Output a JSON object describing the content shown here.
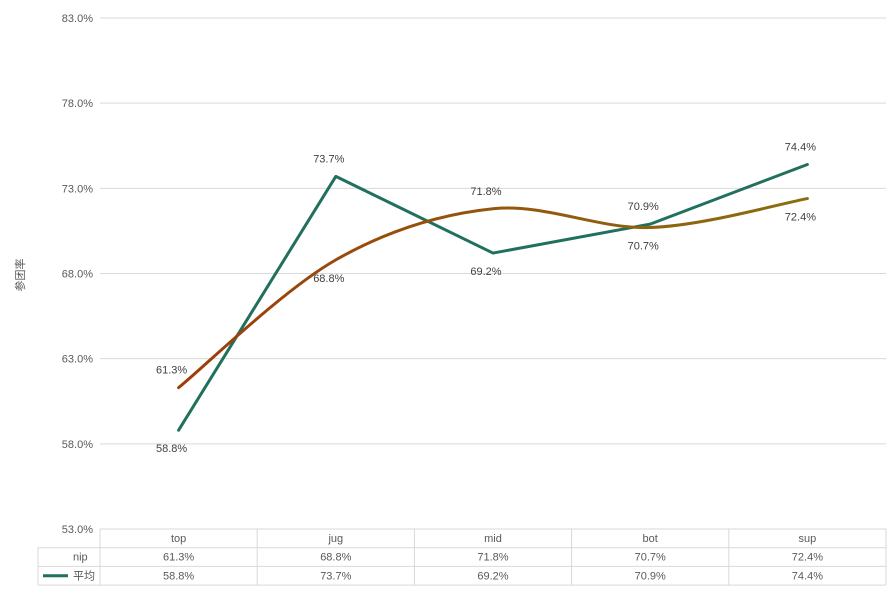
{
  "chart_data": {
    "type": "line",
    "title": "",
    "xlabel": "",
    "ylabel": "参团率",
    "categories": [
      "top",
      "jug",
      "mid",
      "bot",
      "sup"
    ],
    "ylim": [
      53.0,
      83.0
    ],
    "yticks": [
      "83.0%",
      "78.0%",
      "73.0%",
      "68.0%",
      "63.0%",
      "58.0%",
      "53.0%"
    ],
    "grid": true,
    "legend": "data-table",
    "series": [
      {
        "name": "nip",
        "values": [
          61.3,
          68.8,
          71.8,
          70.7,
          72.4
        ],
        "labels": [
          "61.3%",
          "68.8%",
          "71.8%",
          "70.7%",
          "72.4%"
        ],
        "smooth": true,
        "colors": [
          "#9c3d0a",
          "#8b6e10"
        ]
      },
      {
        "name": "平均",
        "values": [
          58.8,
          73.7,
          69.2,
          70.9,
          74.4
        ],
        "labels": [
          "58.8%",
          "73.7%",
          "69.2%",
          "70.9%",
          "74.4%"
        ],
        "smooth": false,
        "colors": [
          "#21705e"
        ]
      }
    ]
  }
}
